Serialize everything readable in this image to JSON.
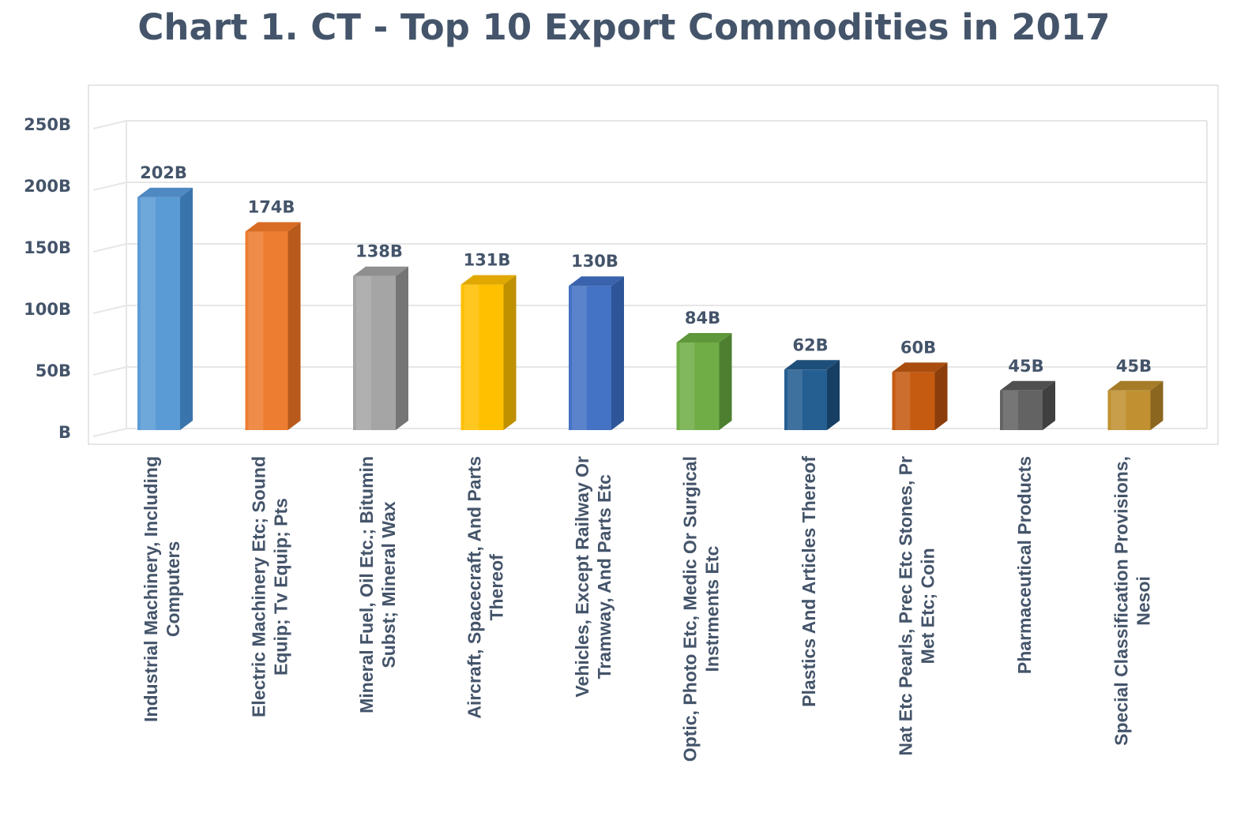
{
  "chart_data": {
    "type": "bar",
    "title": "Chart 1. CT - Top 10 Export Commodities in 2017",
    "xlabel": "",
    "ylabel": "",
    "ylim": [
      0,
      250
    ],
    "yticks": [
      {
        "value": 0,
        "label": "B"
      },
      {
        "value": 50,
        "label": "50B"
      },
      {
        "value": 100,
        "label": "100B"
      },
      {
        "value": 150,
        "label": "150B"
      },
      {
        "value": 200,
        "label": "200B"
      },
      {
        "value": 250,
        "label": "250B"
      }
    ],
    "grid": true,
    "legend": "none",
    "categories": [
      [
        "Industrial Machinery, Including",
        "Computers"
      ],
      [
        "Electric Machinery Etc; Sound",
        "Equip; Tv Equip; Pts"
      ],
      [
        "Mineral Fuel, Oil Etc.; Bitumin",
        "Subst; Mineral Wax"
      ],
      [
        "Aircraft, Spacecraft, And Parts",
        "Thereof"
      ],
      [
        "Vehicles, Except Railway Or",
        "Tramway, And Parts Etc"
      ],
      [
        "Optic, Photo Etc, Medic Or Surgical",
        "Instrments Etc"
      ],
      [
        "Plastics And Articles Thereof"
      ],
      [
        "Nat Etc Pearls, Prec Etc Stones, Pr",
        "Met Etc; Coin"
      ],
      [
        "Pharmaceutical Products"
      ],
      [
        "Special Classification Provisions,",
        "Nesoi"
      ]
    ],
    "values": [
      202,
      174,
      138,
      131,
      130,
      84,
      62,
      60,
      45,
      45
    ],
    "data_labels": [
      "202B",
      "174B",
      "138B",
      "131B",
      "130B",
      "84B",
      "62B",
      "60B",
      "45B",
      "45B"
    ],
    "colors": [
      {
        "front": "#5b9bd5",
        "side": "#3a74ad",
        "top": "#4f89c2"
      },
      {
        "front": "#ed7d31",
        "side": "#b85a1b",
        "top": "#d96c24"
      },
      {
        "front": "#a5a5a5",
        "side": "#757575",
        "top": "#8f8f8f"
      },
      {
        "front": "#ffc000",
        "side": "#bf9000",
        "top": "#e0a800"
      },
      {
        "front": "#4472c4",
        "side": "#2e5597",
        "top": "#3a63ad"
      },
      {
        "front": "#70ad47",
        "side": "#4e7f30",
        "top": "#5f973b"
      },
      {
        "front": "#255e91",
        "side": "#173f63",
        "top": "#1e4f7a"
      },
      {
        "front": "#c55a11",
        "side": "#8b3e0b",
        "top": "#a84d0e"
      },
      {
        "front": "#636363",
        "side": "#3f3f3f",
        "top": "#505050"
      },
      {
        "front": "#c19131",
        "side": "#8a661f",
        "top": "#a67c28"
      }
    ]
  }
}
